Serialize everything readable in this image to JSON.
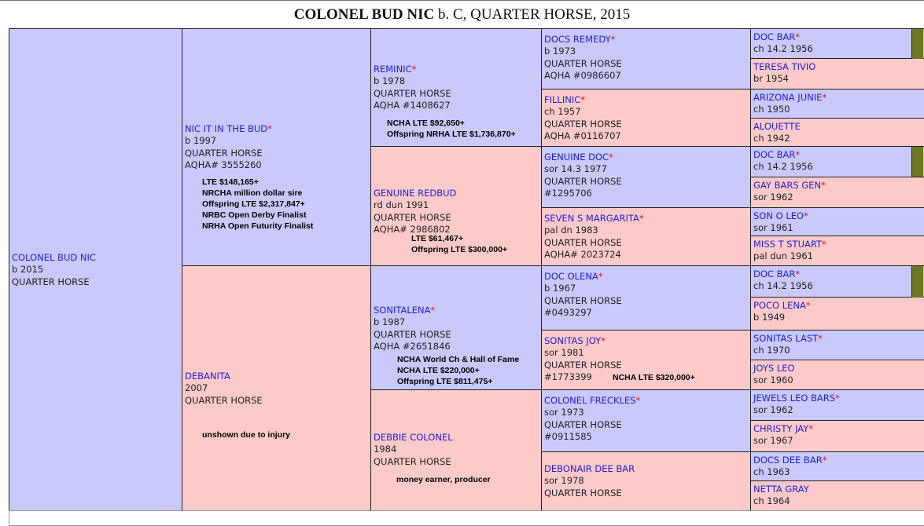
{
  "title": {
    "name": "COLONEL BUD NIC",
    "rest": " b. C, QUARTER HORSE, 2015"
  },
  "subject": {
    "name": "COLONEL BUD NIC",
    "lines": [
      "b 2015",
      "QUARTER HORSE"
    ]
  },
  "sire": {
    "name": "NIC IT IN THE BUD",
    "star": "*",
    "lines": [
      "b 1997",
      "QUARTER HORSE",
      "AQHA# 3555260"
    ],
    "notes": [
      "LTE $148,165+",
      "NRCHA million dollar sire",
      "Offspring LTE $2,317,847+",
      "NRBC Open Derby Finalist",
      "NRHA Open Futurity Finalist"
    ]
  },
  "dam": {
    "name": "DEBANITA",
    "star": "",
    "lines": [
      "2007",
      "QUARTER HORSE"
    ],
    "notes": [
      "unshown due to injury"
    ]
  },
  "gen2": [
    {
      "name": "REMINIC",
      "star": "*",
      "lines": [
        "b 1978",
        "QUARTER HORSE",
        "AQHA #1408627"
      ],
      "notes": [
        "NCHA LTE $92,650+",
        "Offspring NRHA LTE $1,736,870+"
      ]
    },
    {
      "name": "GENUINE REDBUD",
      "star": "",
      "lines": [
        "rd dun 1991",
        "QUARTER HORSE",
        "AQHA# 2986802"
      ],
      "notes": [
        "LTE $61,467+",
        "Offspring LTE $300,000+"
      ]
    },
    {
      "name": "SONITALENA",
      "star": "*",
      "lines": [
        "b 1987",
        "QUARTER HORSE",
        "AQHA #2651846"
      ],
      "notes": [
        "NCHA World Ch & Hall of Fame",
        "NCHA LTE $220,000+",
        "Offspring LTE $811,475+"
      ]
    },
    {
      "name": "DEBBIE COLONEL",
      "star": "",
      "lines": [
        "1984",
        "QUARTER HORSE"
      ],
      "notes": [
        "money earner, producer"
      ]
    }
  ],
  "gen3": [
    {
      "name": "DOCS REMEDY",
      "star": "*",
      "lines": [
        "b 1973",
        "QUARTER HORSE",
        "AQHA #0986607"
      ],
      "note": ""
    },
    {
      "name": "FILLINIC",
      "star": "*",
      "lines": [
        "ch 1957",
        "QUARTER HORSE",
        "AQHA #0116707"
      ],
      "note": ""
    },
    {
      "name": "GENUINE DOC",
      "star": "*",
      "lines": [
        "sor 14.3 1977",
        "QUARTER HORSE",
        "#1295706"
      ],
      "note": ""
    },
    {
      "name": "SEVEN S MARGARITA",
      "star": "*",
      "lines": [
        "pal dn 1983",
        "QUARTER HORSE",
        "AQHA# 2023724"
      ],
      "note": ""
    },
    {
      "name": "DOC OLENA",
      "star": "*",
      "lines": [
        "b 1967",
        "QUARTER HORSE",
        "#0493297"
      ],
      "note": ""
    },
    {
      "name": "SONITAS JOY",
      "star": "*",
      "lines": [
        "sor 1981",
        "QUARTER HORSE",
        "#1773399"
      ],
      "note": "NCHA LTE $320,000+"
    },
    {
      "name": "COLONEL FRECKLES",
      "star": "*",
      "lines": [
        "sor 1973",
        "QUARTER HORSE",
        "#0911585"
      ],
      "note": ""
    },
    {
      "name": "DEBONAIR DEE BAR",
      "star": "",
      "lines": [
        "sor 1978",
        "QUARTER HORSE"
      ],
      "note": ""
    }
  ],
  "gen4": [
    {
      "name": "DOC BAR",
      "star": "*",
      "line": "ch 14.2 1956"
    },
    {
      "name": "TERESA TIVIO",
      "star": "",
      "line": "br 1954"
    },
    {
      "name": "ARIZONA JUNIE",
      "star": "*",
      "line": "ch 1950"
    },
    {
      "name": "ALOUETTE",
      "star": "",
      "line": "ch 1942"
    },
    {
      "name": "DOC BAR",
      "star": "*",
      "line": "ch 14.2 1956"
    },
    {
      "name": "GAY BARS GEN",
      "star": "*",
      "line": "sor 1962"
    },
    {
      "name": "SON O LEO",
      "star": "*",
      "line": "sor 1961"
    },
    {
      "name": "MISS T STUART",
      "star": "*",
      "line": "pal dun 1961"
    },
    {
      "name": "DOC BAR",
      "star": "*",
      "line": "ch 14.2 1956"
    },
    {
      "name": "POCO LENA",
      "star": "*",
      "line": "b 1949"
    },
    {
      "name": "SONITAS LAST",
      "star": "*",
      "line": "ch 1970"
    },
    {
      "name": "JOYS LEO",
      "star": "",
      "line": "sor 1960"
    },
    {
      "name": "JEWELS LEO BARS",
      "star": "*",
      "line": "sor 1962"
    },
    {
      "name": "CHRISTY JAY",
      "star": "*",
      "line": "sor 1967"
    },
    {
      "name": "DOCS DEE BAR",
      "star": "*",
      "line": "ch 1963"
    },
    {
      "name": "NETTA GRAY",
      "star": "",
      "line": "ch 1964"
    }
  ],
  "colors": {
    "male": "#c9c9fb",
    "female": "#fdcaca",
    "name_link": "#1f1fd6",
    "star": "#e01010",
    "tab": "#6d7820"
  }
}
